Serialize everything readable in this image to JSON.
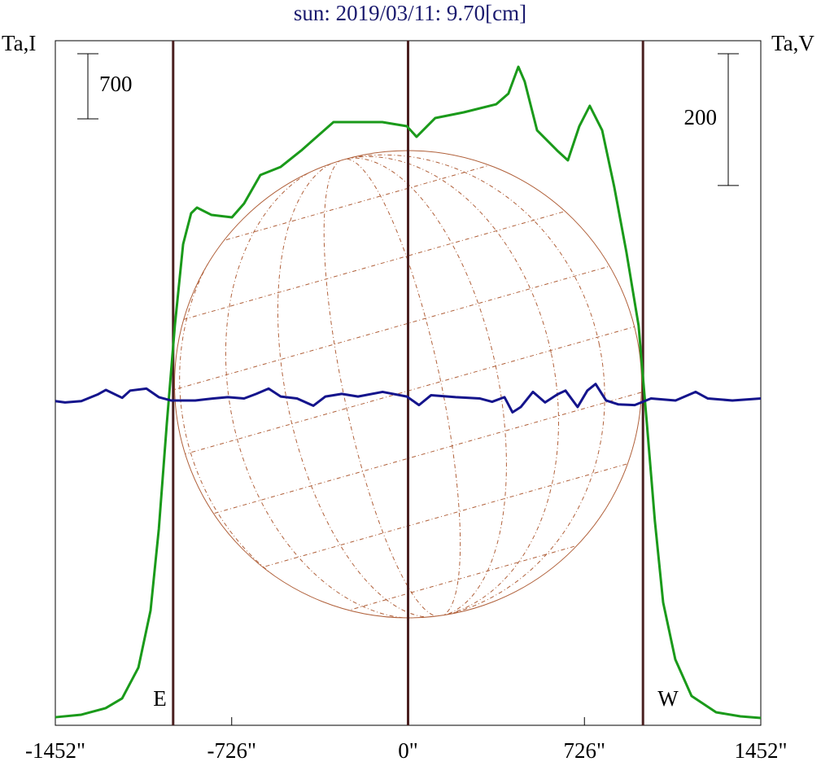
{
  "chart_data": {
    "type": "line",
    "title": "sun: 2019/03/11: 9.70[cm]",
    "y_label": "Ta,I",
    "y2_label": "Ta,V",
    "xlim": [
      -1452,
      1452
    ],
    "xticks": [
      {
        "value": -1452,
        "label": "-1452\""
      },
      {
        "value": -726,
        "label": "-726\""
      },
      {
        "value": 0,
        "label": "0\""
      },
      {
        "value": 726,
        "label": "726\""
      },
      {
        "value": 1452,
        "label": "1452\""
      }
    ],
    "ylim": [
      0,
      7359
    ],
    "y2lim": [
      -492,
      547
    ],
    "markers": [
      {
        "x": -967,
        "label": "E"
      },
      {
        "x": 0
      },
      {
        "x": 967,
        "label": "W"
      }
    ],
    "marker_color": "#4a2020",
    "scale_bars": [
      {
        "value": 700,
        "axis": "y"
      },
      {
        "value": 200,
        "axis": "y2"
      }
    ],
    "series": [
      {
        "color": "#1a9a1a",
        "x": [
          -1452,
          -1345,
          -1245,
          -1177,
          -1110,
          -1060,
          -1026,
          -993,
          -960,
          -926,
          -893,
          -869,
          -809,
          -725,
          -675,
          -608,
          -524,
          -440,
          -307,
          -240,
          -106,
          -5,
          35,
          112,
          229,
          363,
          413,
          454,
          480,
          531,
          614,
          658,
          705,
          748,
          799,
          849,
          899,
          949,
          983,
          1016,
          1050,
          1100,
          1167,
          1268,
          1368,
          1452
        ],
        "values": [
          87,
          114,
          184,
          289,
          621,
          1234,
          2109,
          3246,
          4296,
          5171,
          5504,
          5565,
          5486,
          5460,
          5609,
          5915,
          6003,
          6178,
          6484,
          6484,
          6484,
          6440,
          6326,
          6528,
          6589,
          6676,
          6790,
          7079,
          6921,
          6396,
          6178,
          6073,
          6440,
          6659,
          6396,
          5784,
          5084,
          4296,
          3246,
          2196,
          1321,
          709,
          315,
          140,
          96,
          79
        ]
      },
      {
        "color": "#14148c",
        "axis": "y2",
        "x": [
          -1452,
          -1412,
          -1345,
          -1278,
          -1244,
          -1177,
          -1144,
          -1077,
          -1026,
          -976,
          -876,
          -802,
          -742,
          -675,
          -625,
          -574,
          -524,
          -457,
          -390,
          -340,
          -273,
          -206,
          -105,
          -5,
          45,
          95,
          196,
          296,
          346,
          397,
          430,
          464,
          514,
          564,
          614,
          648,
          698,
          738,
          772,
          815,
          866,
          933,
          1000,
          1101,
          1184,
          1234,
          1335,
          1452
        ],
        "values": [
          0,
          -2,
          0,
          10,
          17,
          5,
          16,
          19,
          6,
          1,
          1,
          4,
          6,
          4,
          11,
          19,
          7,
          4,
          -7,
          7,
          11,
          7,
          14,
          7,
          -6,
          9,
          6,
          4,
          -1,
          6,
          -17,
          -9,
          14,
          -2,
          10,
          16,
          -9,
          16,
          26,
          1,
          -5,
          -6,
          4,
          1,
          14,
          4,
          1,
          4
        ]
      }
    ]
  }
}
